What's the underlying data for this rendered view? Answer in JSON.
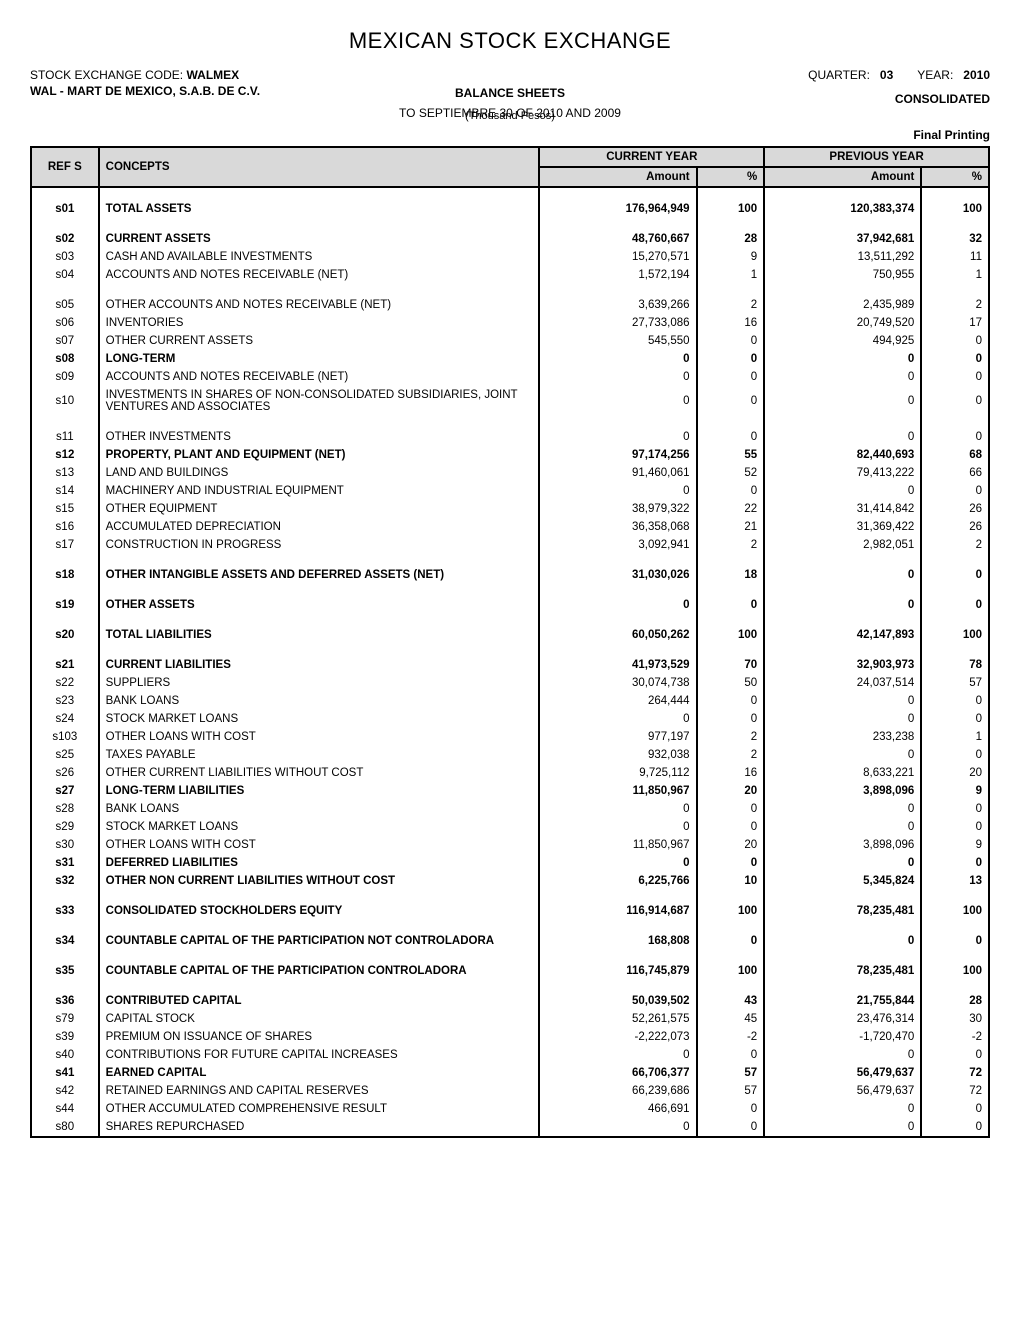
{
  "header": {
    "title": "MEXICAN STOCK EXCHANGE",
    "stock_code_label": "STOCK EXCHANGE CODE:",
    "stock_code": "WALMEX",
    "quarter_label": "QUARTER:",
    "quarter": "03",
    "year_label": "YEAR:",
    "year": "2010",
    "company": "WAL - MART DE MEXICO, S.A.B. DE C.V.",
    "sheet_title": "BALANCE SHEETS",
    "period": "TO SEPTIEMBRE 30 OF 2010 AND 2009",
    "unit": "(Thousand Pesos)",
    "consolidated": "CONSOLIDATED",
    "final_printing": "Final Printing"
  },
  "table": {
    "headers": {
      "ref": "REF S",
      "concepts": "CONCEPTS",
      "current_year": "CURRENT YEAR",
      "previous_year": "PREVIOUS YEAR",
      "amount": "Amount",
      "percent": "%"
    },
    "rows": [
      {
        "ref": "s01",
        "concept": "TOTAL ASSETS",
        "cy_amt": "176,964,949",
        "cy_pct": "100",
        "py_amt": "120,383,374",
        "py_pct": "100",
        "bold": true,
        "spacer_before": true
      },
      {
        "ref": "s02",
        "concept": "CURRENT ASSETS",
        "cy_amt": "48,760,667",
        "cy_pct": "28",
        "py_amt": "37,942,681",
        "py_pct": "32",
        "bold": true,
        "spacer_before": true
      },
      {
        "ref": "s03",
        "concept": "CASH AND AVAILABLE INVESTMENTS",
        "cy_amt": "15,270,571",
        "cy_pct": "9",
        "py_amt": "13,511,292",
        "py_pct": "11"
      },
      {
        "ref": "s04",
        "concept": "ACCOUNTS AND NOTES RECEIVABLE (NET)",
        "cy_amt": "1,572,194",
        "cy_pct": "1",
        "py_amt": "750,955",
        "py_pct": "1",
        "spacer_after": true
      },
      {
        "ref": "s05",
        "concept": "OTHER ACCOUNTS AND NOTES RECEIVABLE (NET)",
        "cy_amt": "3,639,266",
        "cy_pct": "2",
        "py_amt": "2,435,989",
        "py_pct": "2"
      },
      {
        "ref": "s06",
        "concept": "INVENTORIES",
        "cy_amt": "27,733,086",
        "cy_pct": "16",
        "py_amt": "20,749,520",
        "py_pct": "17"
      },
      {
        "ref": "s07",
        "concept": "OTHER CURRENT ASSETS",
        "cy_amt": "545,550",
        "cy_pct": "0",
        "py_amt": "494,925",
        "py_pct": "0"
      },
      {
        "ref": "s08",
        "concept": "LONG-TERM",
        "cy_amt": "0",
        "cy_pct": "0",
        "py_amt": "0",
        "py_pct": "0",
        "bold": true
      },
      {
        "ref": "s09",
        "concept": "ACCOUNTS AND NOTES RECEIVABLE (NET)",
        "cy_amt": "0",
        "cy_pct": "0",
        "py_amt": "0",
        "py_pct": "0"
      },
      {
        "ref": "s10",
        "concept": "INVESTMENTS IN SHARES OF NON-CONSOLIDATED SUBSIDIARIES, JOINT VENTURES AND ASSOCIATES",
        "cy_amt": "0",
        "cy_pct": "0",
        "py_amt": "0",
        "py_pct": "0"
      },
      {
        "ref": "s11",
        "concept": "OTHER INVESTMENTS",
        "cy_amt": "0",
        "cy_pct": "0",
        "py_amt": "0",
        "py_pct": "0",
        "spacer_before": true
      },
      {
        "ref": "s12",
        "concept": "PROPERTY, PLANT AND EQUIPMENT (NET)",
        "cy_amt": "97,174,256",
        "cy_pct": "55",
        "py_amt": "82,440,693",
        "py_pct": "68",
        "bold": true
      },
      {
        "ref": "s13",
        "concept": "LAND AND BUILDINGS",
        "cy_amt": "91,460,061",
        "cy_pct": "52",
        "py_amt": "79,413,222",
        "py_pct": "66"
      },
      {
        "ref": "s14",
        "concept": "MACHINERY AND INDUSTRIAL EQUIPMENT",
        "cy_amt": "0",
        "cy_pct": "0",
        "py_amt": "0",
        "py_pct": "0"
      },
      {
        "ref": "s15",
        "concept": "OTHER EQUIPMENT",
        "cy_amt": "38,979,322",
        "cy_pct": "22",
        "py_amt": "31,414,842",
        "py_pct": "26"
      },
      {
        "ref": "s16",
        "concept": "ACCUMULATED DEPRECIATION",
        "cy_amt": "36,358,068",
        "cy_pct": "21",
        "py_amt": "31,369,422",
        "py_pct": "26"
      },
      {
        "ref": "s17",
        "concept": "CONSTRUCTION IN PROGRESS",
        "cy_amt": "3,092,941",
        "cy_pct": "2",
        "py_amt": "2,982,051",
        "py_pct": "2"
      },
      {
        "ref": "s18",
        "concept": "OTHER INTANGIBLE ASSETS AND DEFERRED ASSETS (NET)",
        "cy_amt": "31,030,026",
        "cy_pct": "18",
        "py_amt": "0",
        "py_pct": "0",
        "bold": true,
        "spacer_before": true
      },
      {
        "ref": "s19",
        "concept": "OTHER ASSETS",
        "cy_amt": "0",
        "cy_pct": "0",
        "py_amt": "0",
        "py_pct": "0",
        "bold": true,
        "spacer_before": true
      },
      {
        "ref": "s20",
        "concept": "TOTAL LIABILITIES",
        "cy_amt": "60,050,262",
        "cy_pct": "100",
        "py_amt": "42,147,893",
        "py_pct": "100",
        "bold": true,
        "spacer_before": true
      },
      {
        "ref": "s21",
        "concept": "CURRENT LIABILITIES",
        "cy_amt": "41,973,529",
        "cy_pct": "70",
        "py_amt": "32,903,973",
        "py_pct": "78",
        "bold": true,
        "spacer_before": true
      },
      {
        "ref": "s22",
        "concept": "SUPPLIERS",
        "cy_amt": "30,074,738",
        "cy_pct": "50",
        "py_amt": "24,037,514",
        "py_pct": "57"
      },
      {
        "ref": "s23",
        "concept": "BANK LOANS",
        "cy_amt": "264,444",
        "cy_pct": "0",
        "py_amt": "0",
        "py_pct": "0"
      },
      {
        "ref": "s24",
        "concept": "STOCK MARKET LOANS",
        "cy_amt": "0",
        "cy_pct": "0",
        "py_amt": "0",
        "py_pct": "0"
      },
      {
        "ref": "s103",
        "concept": "OTHER LOANS WITH COST",
        "cy_amt": "977,197",
        "cy_pct": "2",
        "py_amt": "233,238",
        "py_pct": "1"
      },
      {
        "ref": "s25",
        "concept": "TAXES PAYABLE",
        "cy_amt": "932,038",
        "cy_pct": "2",
        "py_amt": "0",
        "py_pct": "0"
      },
      {
        "ref": "s26",
        "concept": "OTHER CURRENT LIABILITIES WITHOUT COST",
        "cy_amt": "9,725,112",
        "cy_pct": "16",
        "py_amt": "8,633,221",
        "py_pct": "20"
      },
      {
        "ref": "s27",
        "concept": "LONG-TERM LIABILITIES",
        "cy_amt": "11,850,967",
        "cy_pct": "20",
        "py_amt": "3,898,096",
        "py_pct": "9",
        "bold": true
      },
      {
        "ref": "s28",
        "concept": "BANK LOANS",
        "cy_amt": "0",
        "cy_pct": "0",
        "py_amt": "0",
        "py_pct": "0"
      },
      {
        "ref": "s29",
        "concept": "STOCK MARKET LOANS",
        "cy_amt": "0",
        "cy_pct": "0",
        "py_amt": "0",
        "py_pct": "0"
      },
      {
        "ref": "s30",
        "concept": "OTHER LOANS WITH COST",
        "cy_amt": "11,850,967",
        "cy_pct": "20",
        "py_amt": "3,898,096",
        "py_pct": "9"
      },
      {
        "ref": "s31",
        "concept": "DEFERRED LIABILITIES",
        "cy_amt": "0",
        "cy_pct": "0",
        "py_amt": "0",
        "py_pct": "0",
        "bold": true
      },
      {
        "ref": "s32",
        "concept": "OTHER NON CURRENT LIABILITIES  WITHOUT COST",
        "cy_amt": "6,225,766",
        "cy_pct": "10",
        "py_amt": "5,345,824",
        "py_pct": "13",
        "bold": true
      },
      {
        "ref": "s33",
        "concept": "CONSOLIDATED STOCKHOLDERS EQUITY",
        "cy_amt": "116,914,687",
        "cy_pct": "100",
        "py_amt": "78,235,481",
        "py_pct": "100",
        "bold": true,
        "spacer_before": true
      },
      {
        "ref": "s34",
        "concept": "COUNTABLE CAPITAL OF THE PARTICIPATION NOT CONTROLADORA",
        "cy_amt": "168,808",
        "cy_pct": "0",
        "py_amt": "0",
        "py_pct": "0",
        "bold": true,
        "spacer_before": true
      },
      {
        "ref": "s35",
        "concept": "COUNTABLE CAPITAL OF THE PARTICIPATION CONTROLADORA",
        "cy_amt": "116,745,879",
        "cy_pct": "100",
        "py_amt": "78,235,481",
        "py_pct": "100",
        "bold": true,
        "spacer_before": true
      },
      {
        "ref": "s36",
        "concept": "CONTRIBUTED CAPITAL",
        "cy_amt": "50,039,502",
        "cy_pct": "43",
        "py_amt": "21,755,844",
        "py_pct": "28",
        "bold": true,
        "spacer_before": true
      },
      {
        "ref": "s79",
        "concept": "CAPITAL STOCK",
        "cy_amt": "52,261,575",
        "cy_pct": "45",
        "py_amt": "23,476,314",
        "py_pct": "30"
      },
      {
        "ref": "s39",
        "concept": "PREMIUM ON ISSUANCE OF SHARES",
        "cy_amt": "-2,222,073",
        "cy_pct": "-2",
        "py_amt": "-1,720,470",
        "py_pct": "-2"
      },
      {
        "ref": "s40",
        "concept": "CONTRIBUTIONS FOR FUTURE CAPITAL INCREASES",
        "cy_amt": "0",
        "cy_pct": "0",
        "py_amt": "0",
        "py_pct": "0"
      },
      {
        "ref": "s41",
        "concept": "EARNED CAPITAL",
        "cy_amt": "66,706,377",
        "cy_pct": "57",
        "py_amt": "56,479,637",
        "py_pct": "72",
        "bold": true
      },
      {
        "ref": "s42",
        "concept": "RETAINED EARNINGS AND CAPITAL RESERVES",
        "cy_amt": "66,239,686",
        "cy_pct": "57",
        "py_amt": "56,479,637",
        "py_pct": "72"
      },
      {
        "ref": "s44",
        "concept": "OTHER ACCUMULATED COMPREHENSIVE RESULT",
        "cy_amt": "466,691",
        "cy_pct": "0",
        "py_amt": "0",
        "py_pct": "0"
      },
      {
        "ref": "s80",
        "concept": "SHARES REPURCHASED",
        "cy_amt": "0",
        "cy_pct": "0",
        "py_amt": "0",
        "py_pct": "0"
      }
    ]
  }
}
